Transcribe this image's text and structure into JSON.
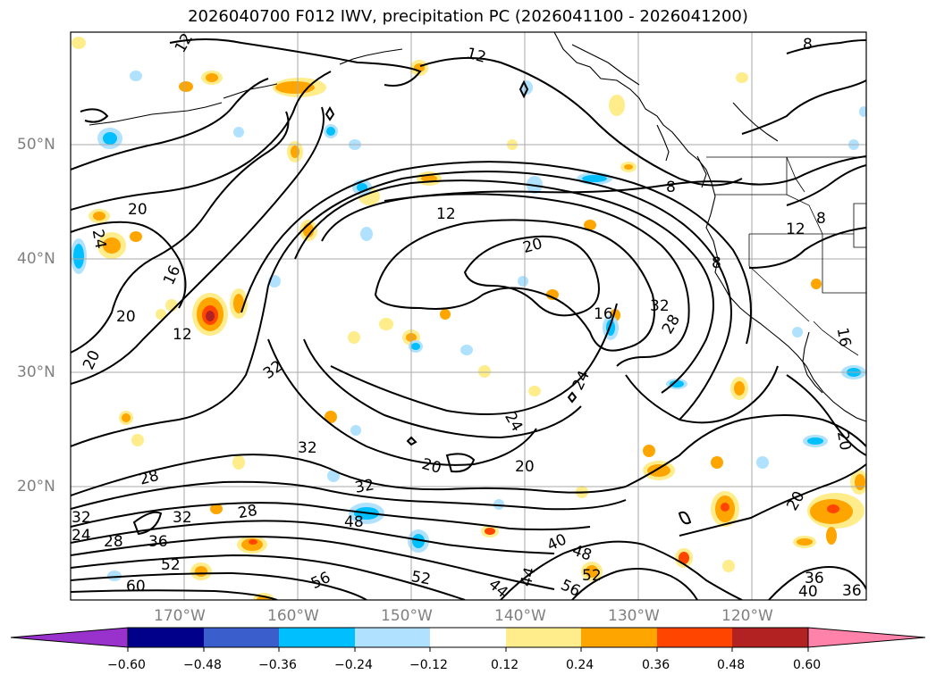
{
  "title": "2026040700 F012 IWV, precipitation PC (2026041100 - 2026041200)",
  "lat_labels": [
    "50°N",
    "40°N",
    "30°N",
    "20°N"
  ],
  "lon_labels": [
    "170°W",
    "160°W",
    "150°W",
    "140°W",
    "130°W",
    "120°W"
  ],
  "colorbar": {
    "ticks": [
      "−0.60",
      "−0.48",
      "−0.36",
      "−0.24",
      "−0.12",
      "0.12",
      "0.24",
      "0.36",
      "0.48",
      "0.60"
    ],
    "colors": [
      "#9932cc",
      "#00008b",
      "#3a5fcd",
      "#00bfff",
      "#b0e2ff",
      "#ffffff",
      "#ffec8b",
      "#ffa500",
      "#ff4500",
      "#b22222",
      "#ff82ab"
    ]
  },
  "contour_labels": [
    "12",
    "12",
    "12",
    "8",
    "8",
    "8",
    "8",
    "12",
    "20",
    "24",
    "16",
    "20",
    "12",
    "20",
    "20",
    "16",
    "32",
    "28",
    "32",
    "24",
    "24",
    "32",
    "20",
    "20",
    "28",
    "32",
    "32",
    "28",
    "48",
    "32",
    "24",
    "28",
    "36",
    "52",
    "60",
    "56",
    "52",
    "44",
    "44",
    "40",
    "48",
    "52",
    "56",
    "20",
    "36",
    "40",
    "36",
    "16",
    "20"
  ]
}
